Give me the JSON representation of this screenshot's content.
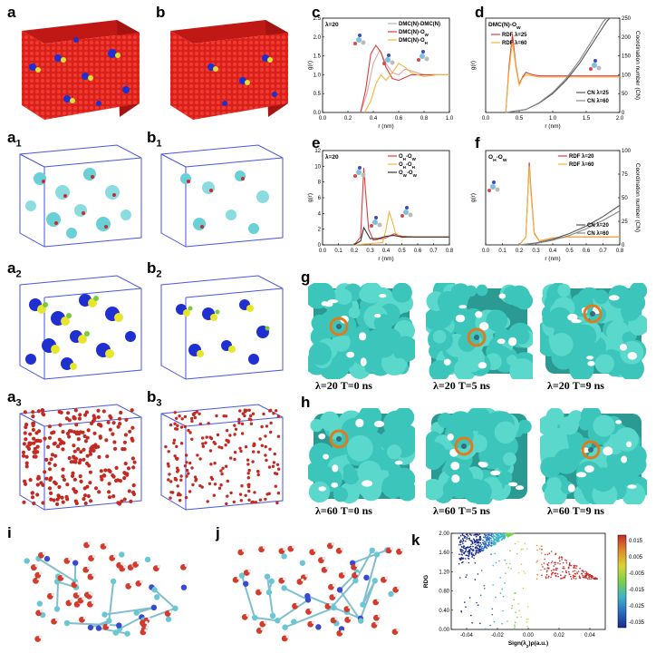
{
  "labels": {
    "a": "a",
    "b": "b",
    "a1": "a",
    "a1s": "1",
    "b1": "b",
    "b1s": "1",
    "a2": "a",
    "a2s": "2",
    "b2": "b",
    "b2s": "2",
    "a3": "a",
    "a3s": "3",
    "b3": "b",
    "b3s": "3",
    "c": "c",
    "d": "d",
    "e": "e",
    "f": "f",
    "g": "g",
    "h": "h",
    "i": "i",
    "j": "j",
    "k": "k"
  },
  "colors": {
    "red": "#e8231e",
    "blue": "#1f2fd1",
    "yellow": "#e8e62a",
    "green": "#7acb3a",
    "cyan": "#38c4c4",
    "teal": "#2fb3a6",
    "orange": "#e08a2a"
  },
  "g_captions": [
    {
      "lambda": "λ=20",
      "time": "T=0 ns"
    },
    {
      "lambda": "λ=20",
      "time": "T=5 ns"
    },
    {
      "lambda": "λ=20",
      "time": "T=9 ns"
    }
  ],
  "h_captions": [
    {
      "lambda": "λ=60",
      "time": "T=0 ns"
    },
    {
      "lambda": "λ=60",
      "time": "T=5 ns"
    },
    {
      "lambda": "λ=60",
      "time": "T=9 ns"
    }
  ],
  "chart_data": [
    {
      "id": "c",
      "type": "line",
      "annotation": "λ=20",
      "xlabel": "r (nm)",
      "ylabel": "g(r)",
      "xlim": [
        0.0,
        1.0
      ],
      "ylim": [
        0.0,
        2.5
      ],
      "xticks": [
        "0.0",
        "0.2",
        "0.4",
        "0.6",
        "0.8",
        "1.0"
      ],
      "yticks": [
        "0.0",
        "0.5",
        "1.0",
        "1.5",
        "2.0",
        "2.5"
      ],
      "legend": "top-right",
      "series": [
        {
          "name": "DMC(N)-DMC(N)",
          "color": "#d6a8a8",
          "x": [
            0.3,
            0.35,
            0.4,
            0.45,
            0.5,
            0.55,
            0.6,
            0.65,
            0.7,
            0.8,
            0.9,
            1.0
          ],
          "y": [
            0,
            0.5,
            1.3,
            1.65,
            1.3,
            1.05,
            1.0,
            1.15,
            1.1,
            1.0,
            1.0,
            1.0
          ]
        },
        {
          "name": "DMC(N)-O",
          "nameSub": "W",
          "color": "#e23b3b",
          "x": [
            0.3,
            0.34,
            0.38,
            0.42,
            0.46,
            0.5,
            0.55,
            0.6,
            0.7,
            0.8,
            0.9,
            1.0
          ],
          "y": [
            0,
            0.6,
            1.55,
            1.78,
            1.6,
            1.2,
            0.9,
            0.85,
            1.0,
            1.0,
            1.0,
            1.0
          ]
        },
        {
          "name": "DMC(N)-O",
          "nameSub": "H",
          "color": "#f2b53a",
          "x": [
            0.33,
            0.38,
            0.42,
            0.46,
            0.5,
            0.55,
            0.6,
            0.65,
            0.7,
            0.8,
            0.9,
            1.0
          ],
          "y": [
            0,
            0.3,
            0.75,
            1.0,
            0.85,
            1.05,
            1.3,
            1.2,
            1.05,
            0.95,
            1.0,
            1.0
          ]
        }
      ]
    },
    {
      "id": "d",
      "type": "line",
      "annotation": "DMC(N)-O",
      "annotationSub": "W",
      "xlabel": "r (nm)",
      "ylabel": "g(r)",
      "y2label": "Coordination number (CN)",
      "xlim": [
        0.0,
        2.0
      ],
      "ylim": [
        0,
        4
      ],
      "y2lim": [
        0,
        250
      ],
      "xticks": [
        "0.0",
        "0.5",
        "1.0",
        "1.5",
        "2.0"
      ],
      "y2ticks": [
        "0",
        "50",
        "100",
        "150",
        "200",
        "250"
      ],
      "legend": "top-left",
      "series": [
        {
          "name": "RDF λ=25",
          "color": "#e23b3b",
          "axis": "y",
          "x": [
            0.3,
            0.35,
            0.4,
            0.45,
            0.5,
            0.55,
            0.6,
            0.7,
            0.8,
            1.0,
            1.5,
            2.0
          ],
          "y": [
            0,
            2.0,
            3.3,
            2.0,
            1.2,
            1.5,
            1.7,
            1.6,
            1.55,
            1.55,
            1.55,
            1.55
          ]
        },
        {
          "name": "RDF λ=60",
          "color": "#f2b53a",
          "axis": "y",
          "x": [
            0.3,
            0.35,
            0.4,
            0.45,
            0.5,
            0.55,
            0.6,
            0.7,
            0.8,
            1.0,
            1.5,
            2.0
          ],
          "y": [
            0,
            1.8,
            3.0,
            1.9,
            1.15,
            1.45,
            1.6,
            1.55,
            1.5,
            1.5,
            1.5,
            1.5
          ]
        },
        {
          "name": "CN λ=25",
          "color": "#555555",
          "axis": "y2",
          "x": [
            0.3,
            0.6,
            0.8,
            1.0,
            1.2,
            1.4,
            1.6,
            1.8,
            1.85
          ],
          "y": [
            0,
            8,
            25,
            50,
            85,
            130,
            185,
            240,
            250
          ]
        },
        {
          "name": "CN λ=60",
          "color": "#888888",
          "axis": "y2",
          "x": [
            0.3,
            0.6,
            0.8,
            1.0,
            1.2,
            1.4,
            1.6,
            1.75,
            1.8
          ],
          "y": [
            0,
            8,
            26,
            53,
            90,
            138,
            195,
            240,
            250
          ]
        }
      ]
    },
    {
      "id": "e",
      "type": "line",
      "annotation": "λ=20",
      "xlabel": "r (nm)",
      "ylabel": "g(r)",
      "xlim": [
        0.0,
        0.8
      ],
      "ylim": [
        0,
        12
      ],
      "xticks": [
        "0.0",
        "0.1",
        "0.2",
        "0.3",
        "0.4",
        "0.5",
        "0.6",
        "0.7",
        "0.8"
      ],
      "yticks": [
        "0",
        "2",
        "4",
        "6",
        "8",
        "10",
        "12"
      ],
      "legend": "top-right",
      "series": [
        {
          "name": "O",
          "nameSub": "H",
          "name2": "-O",
          "name2Sub": "W",
          "color": "#e23b3b",
          "x": [
            0.2,
            0.24,
            0.26,
            0.27,
            0.29,
            0.32,
            0.4,
            0.45,
            0.5,
            0.6,
            0.7,
            0.8
          ],
          "y": [
            0,
            1.0,
            9.8,
            7.0,
            2.0,
            0.6,
            0.9,
            1.4,
            1.1,
            1.0,
            1.0,
            1.0
          ]
        },
        {
          "name": "O",
          "nameSub": "H",
          "name2": "-O",
          "name2Sub": "H",
          "color": "#f2b53a",
          "x": [
            0.2,
            0.38,
            0.4,
            0.42,
            0.44,
            0.46,
            0.5,
            0.55,
            0.6,
            0.7,
            0.8
          ],
          "y": [
            0,
            0.3,
            2.0,
            4.2,
            3.0,
            1.5,
            0.9,
            1.1,
            1.0,
            1.0,
            1.0
          ]
        },
        {
          "name": "O",
          "nameSub": "W",
          "name2": "-O",
          "name2Sub": "W",
          "color": "#333333",
          "x": [
            0.2,
            0.24,
            0.26,
            0.28,
            0.3,
            0.35,
            0.4,
            0.45,
            0.5,
            0.6,
            0.8
          ],
          "y": [
            0,
            0.5,
            2.2,
            1.5,
            0.8,
            0.8,
            1.1,
            1.2,
            1.0,
            1.0,
            1.0
          ]
        }
      ]
    },
    {
      "id": "f",
      "type": "line",
      "annotation": "O",
      "annotationSub": "H",
      "annotation2": "-O",
      "annotation2Sub": "W",
      "xlabel": "r (nm)",
      "ylabel": "g(r)",
      "y2label": "Coordination number (CN)",
      "xlim": [
        0.0,
        0.8
      ],
      "ylim": [
        0,
        12
      ],
      "y2lim": [
        0,
        100
      ],
      "xticks": [
        "0.0",
        "0.1",
        "0.2",
        "0.3",
        "0.4",
        "0.5",
        "0.6",
        "0.7",
        "0.8"
      ],
      "y2ticks": [
        "0",
        "25",
        "50",
        "75",
        "100"
      ],
      "legend": "top-right",
      "series": [
        {
          "name": "RDF λ=20",
          "color": "#e23b3b",
          "axis": "y",
          "x": [
            0.2,
            0.24,
            0.26,
            0.27,
            0.29,
            0.32,
            0.4,
            0.5,
            0.6,
            0.8
          ],
          "y": [
            0,
            1.0,
            10.5,
            7.0,
            1.5,
            0.5,
            0.9,
            1.0,
            1.0,
            1.0
          ]
        },
        {
          "name": "RDF λ=60",
          "color": "#f2b53a",
          "axis": "y",
          "x": [
            0.2,
            0.24,
            0.26,
            0.27,
            0.29,
            0.32,
            0.4,
            0.5,
            0.6,
            0.8
          ],
          "y": [
            0,
            1.0,
            10.0,
            6.5,
            1.4,
            0.5,
            0.9,
            1.0,
            1.0,
            1.0
          ]
        },
        {
          "name": "CN λ=20",
          "color": "#555555",
          "axis": "y2",
          "x": [
            0.2,
            0.3,
            0.4,
            0.5,
            0.6,
            0.7,
            0.8
          ],
          "y": [
            0,
            2,
            6,
            12,
            20,
            30,
            42
          ]
        },
        {
          "name": "CN λ=60",
          "color": "#888888",
          "axis": "y2",
          "x": [
            0.2,
            0.3,
            0.4,
            0.5,
            0.6,
            0.7,
            0.8
          ],
          "y": [
            0,
            1.5,
            5,
            10,
            17,
            26,
            36
          ]
        }
      ]
    },
    {
      "id": "k",
      "type": "scatter",
      "xlabel": "Sign(λ",
      "xlabelSub": "2",
      "xlabelTail": ")ρ(a.u.)",
      "ylabel": "RDG",
      "xlim": [
        -0.05,
        0.05
      ],
      "ylim": [
        0.0,
        2.0
      ],
      "xticks": [
        "-0.04",
        "-0.02",
        "0.00",
        "0.02",
        "0.04"
      ],
      "yticks": [
        "0.00",
        "0.40",
        "0.80",
        "1.20",
        "1.60",
        "2.00"
      ],
      "colorbar": {
        "ticks": [
          "0.015",
          "0.005",
          "-0.005",
          "-0.015",
          "-0.025",
          "-0.035"
        ],
        "range": [
          -0.035,
          0.015
        ],
        "colors": [
          "#1a2a8c",
          "#2a6cc0",
          "#3cb6c6",
          "#7ccf4a",
          "#d8d438",
          "#e08a2a",
          "#c42a2a"
        ]
      }
    }
  ]
}
